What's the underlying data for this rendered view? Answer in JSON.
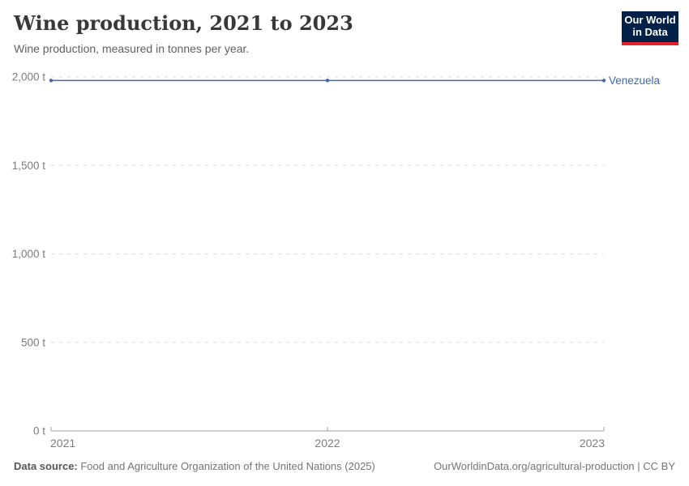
{
  "header": {
    "title": "Wine production, 2021 to 2023",
    "subtitle": "Wine production, measured in tonnes per year.",
    "logo": {
      "line1": "Our World",
      "line2": "in Data"
    }
  },
  "footer": {
    "source_label": "Data source:",
    "source_text": " Food and Agriculture Organization of the United Nations (2025)",
    "link_text": "OurWorldinData.org/agricultural-production | CC BY"
  },
  "colors": {
    "line": "#4268a9",
    "grid": "#dcdcdc",
    "axis": "#a3a3a3",
    "tick_text": "#7d7d7d",
    "logo_bg": "#002147",
    "logo_red": "#e0262c"
  },
  "chart_data": {
    "type": "line",
    "title": "Wine production, 2021 to 2023",
    "subtitle": "Wine production, measured in tonnes per year.",
    "x": [
      2021,
      2022,
      2023
    ],
    "x_tick_labels": [
      "2021",
      "2022",
      "2023"
    ],
    "series": [
      {
        "name": "Venezuela",
        "values": [
          1980,
          1980,
          1980
        ]
      }
    ],
    "ylim": [
      0,
      2000
    ],
    "yticks": [
      {
        "value": 0,
        "label": "0 t"
      },
      {
        "value": 500,
        "label": "500 t"
      },
      {
        "value": 1000,
        "label": "1,000 t"
      },
      {
        "value": 1500,
        "label": "1,500 t"
      },
      {
        "value": 2000,
        "label": "2,000 t"
      }
    ],
    "grid": "dashed horizontal",
    "legend_position": "end-of-line label",
    "unit": "t"
  }
}
